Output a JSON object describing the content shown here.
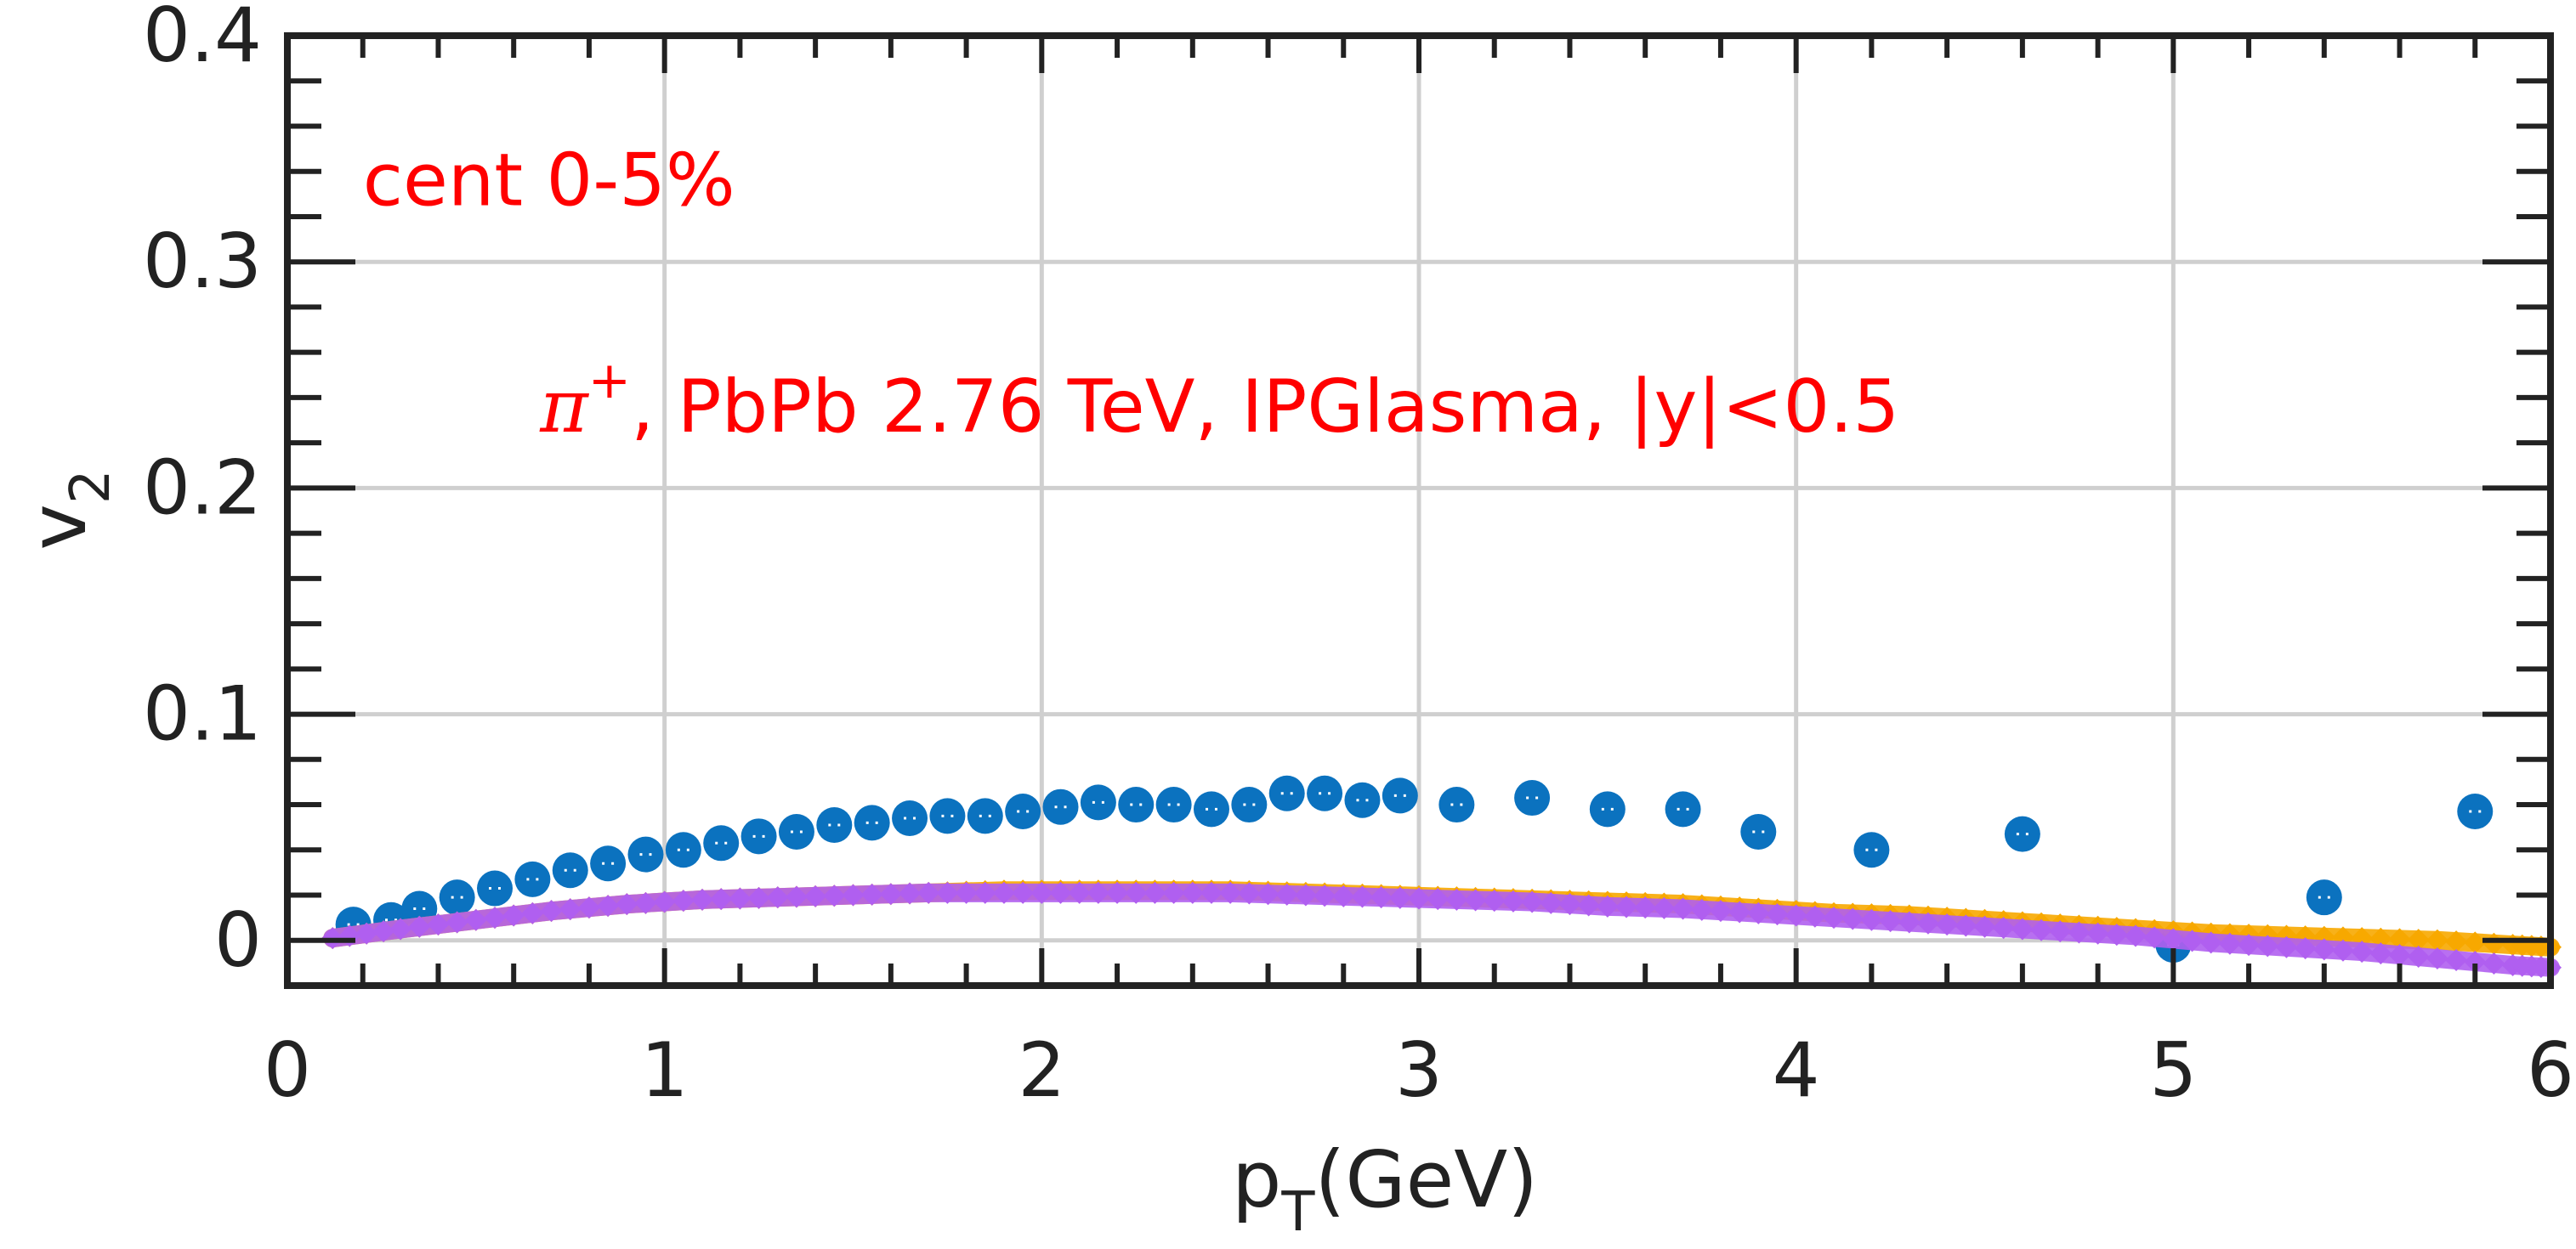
{
  "chart_data": {
    "type": "scatter",
    "xlabel": {
      "main": "p",
      "sub": "T",
      "suffix": "(GeV)"
    },
    "ylabel": {
      "main": "v",
      "sub": "2"
    },
    "xlim": [
      0,
      6
    ],
    "ylim": [
      -0.02,
      0.4
    ],
    "x_ticks": [
      "0",
      "1",
      "2",
      "3",
      "4",
      "5",
      "6"
    ],
    "y_ticks": [
      "0",
      "0.1",
      "0.2",
      "0.3",
      "0.4"
    ],
    "grid": true,
    "annotations": [
      {
        "text": "cent 0-5%",
        "x": 0.2,
        "y": 0.325
      },
      {
        "main": "π",
        "sup": "+",
        "rest": ", PbPb 2.76 TeV, IPGlasma, |y|<0.5",
        "x": 0.67,
        "y": 0.225
      }
    ],
    "series": [
      {
        "marker": "circle",
        "color": "#0b72bf",
        "x": [
          0.175,
          0.275,
          0.35,
          0.45,
          0.55,
          0.65,
          0.75,
          0.85,
          0.95,
          1.05,
          1.15,
          1.25,
          1.35,
          1.45,
          1.55,
          1.65,
          1.75,
          1.85,
          1.95,
          2.05,
          2.15,
          2.25,
          2.35,
          2.45,
          2.55,
          2.65,
          2.75,
          2.85,
          2.95,
          3.1,
          3.3,
          3.5,
          3.7,
          3.9,
          4.2,
          4.6,
          5.0,
          5.4,
          5.8
        ],
        "y": [
          0.007,
          0.009,
          0.014,
          0.019,
          0.023,
          0.027,
          0.031,
          0.034,
          0.038,
          0.04,
          0.043,
          0.046,
          0.048,
          0.051,
          0.052,
          0.054,
          0.055,
          0.055,
          0.057,
          0.059,
          0.061,
          0.06,
          0.06,
          0.058,
          0.06,
          0.065,
          0.065,
          0.062,
          0.064,
          0.06,
          0.063,
          0.058,
          0.058,
          0.048,
          0.04,
          0.047,
          -0.002,
          0.019,
          0.057
        ]
      },
      {
        "marker": "diamond",
        "color": "#f7a800",
        "x": [
          0.12,
          0.3,
          0.5,
          0.7,
          0.9,
          1.1,
          1.3,
          1.5,
          1.7,
          1.9,
          2.1,
          2.3,
          2.5,
          2.7,
          2.9,
          3.1,
          3.3,
          3.5,
          3.7,
          3.9,
          4.1,
          4.3,
          4.5,
          4.7,
          4.9,
          5.1,
          5.3,
          5.5,
          5.7,
          5.9,
          6.0
        ],
        "y": [
          0.001,
          0.005,
          0.009,
          0.013,
          0.016,
          0.018,
          0.019,
          0.02,
          0.021,
          0.022,
          0.022,
          0.022,
          0.022,
          0.021,
          0.02,
          0.019,
          0.018,
          0.017,
          0.016,
          0.014,
          0.012,
          0.011,
          0.009,
          0.007,
          0.005,
          0.003,
          0.002,
          0.001,
          0.0,
          -0.002,
          -0.003
        ]
      },
      {
        "marker": "diamond",
        "color": "#b05ff0",
        "x": [
          0.12,
          0.3,
          0.5,
          0.7,
          0.9,
          1.1,
          1.3,
          1.5,
          1.7,
          1.9,
          2.1,
          2.3,
          2.5,
          2.7,
          2.9,
          3.1,
          3.3,
          3.5,
          3.7,
          3.9,
          4.1,
          4.3,
          4.5,
          4.7,
          4.9,
          5.1,
          5.3,
          5.5,
          5.7,
          5.9,
          6.0
        ],
        "y": [
          0.001,
          0.005,
          0.009,
          0.013,
          0.016,
          0.018,
          0.019,
          0.02,
          0.021,
          0.021,
          0.021,
          0.021,
          0.021,
          0.02,
          0.019,
          0.018,
          0.017,
          0.015,
          0.014,
          0.012,
          0.01,
          0.008,
          0.006,
          0.004,
          0.002,
          -0.001,
          -0.003,
          -0.005,
          -0.008,
          -0.011,
          -0.012
        ]
      }
    ]
  }
}
